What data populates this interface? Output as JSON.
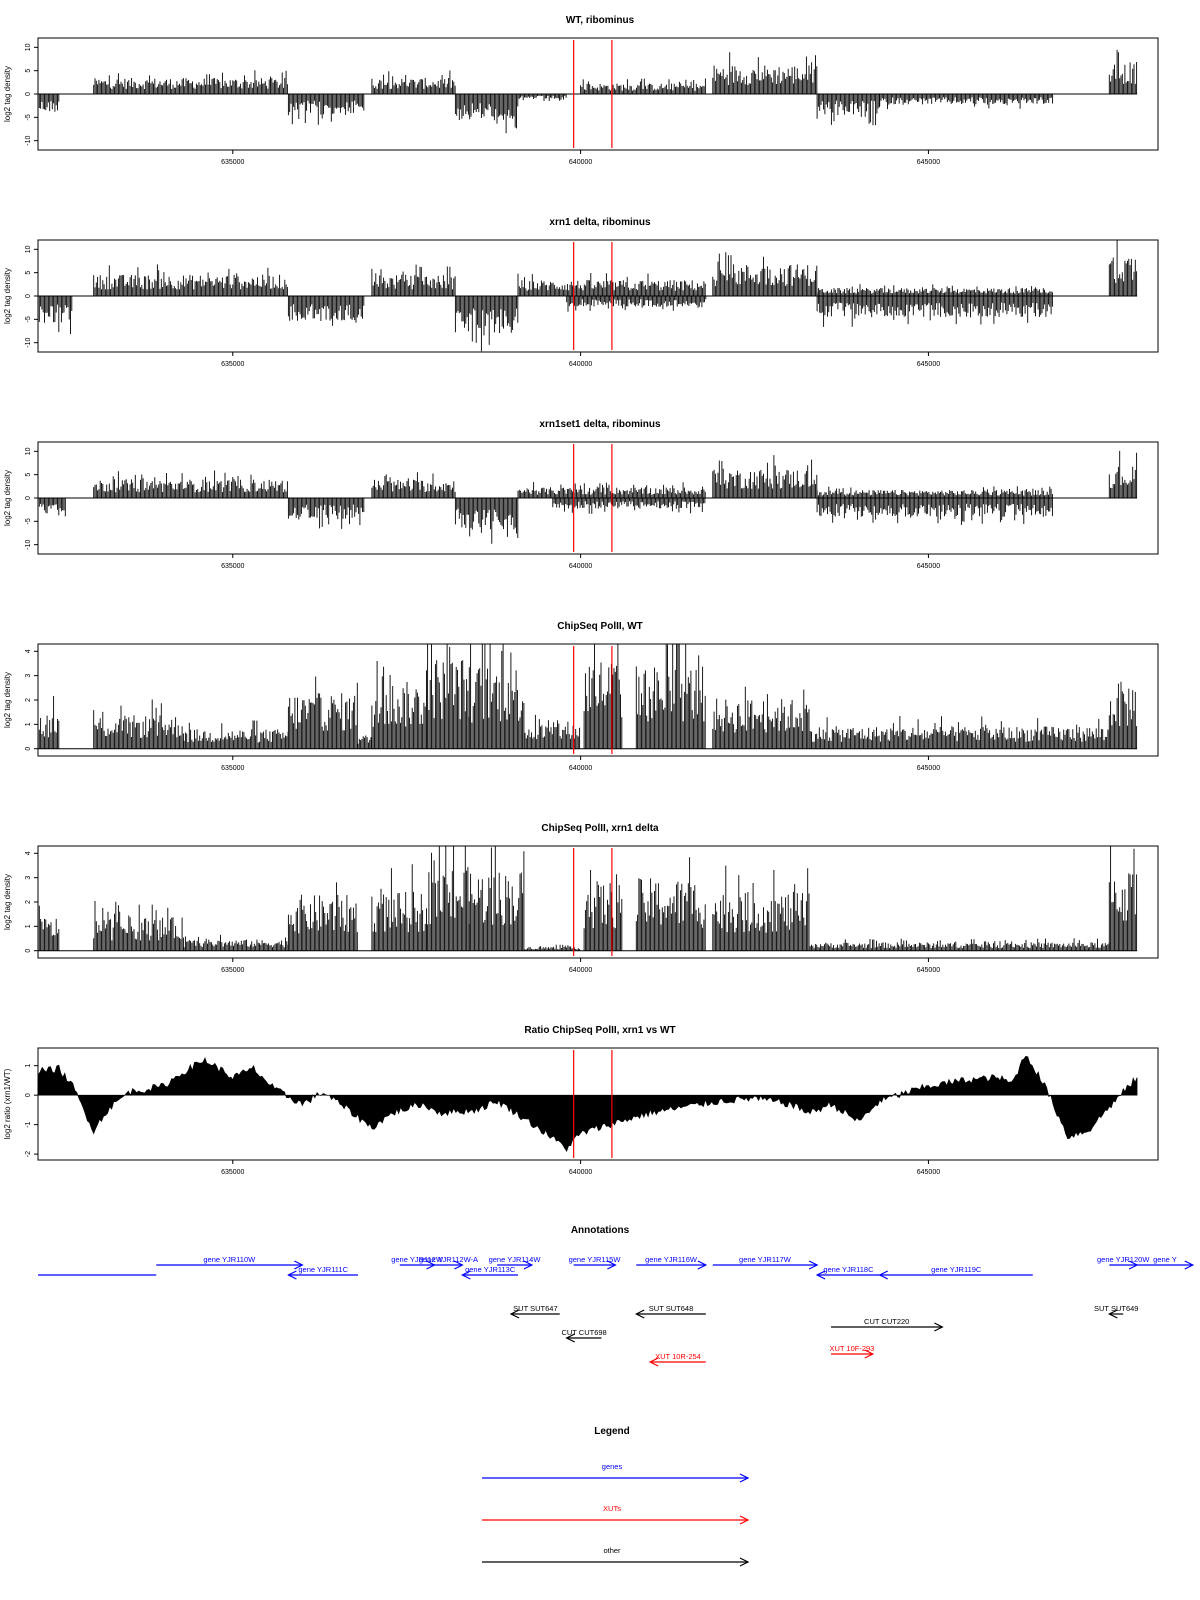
{
  "chart_data": [
    {
      "type": "bar",
      "title": "WT, ribominus",
      "ylabel": "log2 tag density",
      "xlim": [
        632200,
        648300
      ],
      "ylim": [
        -12,
        12
      ],
      "yticks": [
        "-10",
        "-5",
        "0",
        "5",
        "10"
      ],
      "xticks": [
        "635000",
        "640000",
        "645000"
      ],
      "markers": [
        639900,
        640450
      ],
      "segments": [
        {
          "from": 632200,
          "to": 632500,
          "sign": -1,
          "level": 3.5
        },
        {
          "from": 633000,
          "to": 635800,
          "sign": 1,
          "level": 3
        },
        {
          "from": 635800,
          "to": 636900,
          "sign": -1,
          "level": 4
        },
        {
          "from": 637000,
          "to": 638200,
          "sign": 1,
          "level": 3
        },
        {
          "from": 638200,
          "to": 639100,
          "sign": -1,
          "level": 5
        },
        {
          "from": 639100,
          "to": 639800,
          "sign": -1,
          "level": 1
        },
        {
          "from": 640000,
          "to": 641800,
          "sign": 1,
          "level": 2
        },
        {
          "from": 641900,
          "to": 643400,
          "sign": 1,
          "level": 5.5
        },
        {
          "from": 643400,
          "to": 644300,
          "sign": -1,
          "level": 4
        },
        {
          "from": 644300,
          "to": 646800,
          "sign": -1,
          "level": 2
        },
        {
          "from": 647600,
          "to": 648000,
          "sign": 1,
          "level": 6
        }
      ]
    },
    {
      "type": "bar",
      "title": "xrn1 delta, ribominus",
      "ylabel": "log2 tag density",
      "xlim": [
        632200,
        648300
      ],
      "ylim": [
        -12,
        12
      ],
      "yticks": [
        "-10",
        "-5",
        "0",
        "5",
        "10"
      ],
      "xticks": [
        "635000",
        "640000",
        "645000"
      ],
      "markers": [
        639900,
        640450
      ],
      "segments": [
        {
          "from": 632200,
          "to": 632700,
          "sign": -1,
          "level": 5
        },
        {
          "from": 633000,
          "to": 635800,
          "sign": 1,
          "level": 4
        },
        {
          "from": 635800,
          "to": 636900,
          "sign": -1,
          "level": 5
        },
        {
          "from": 637000,
          "to": 638200,
          "sign": 1,
          "level": 4
        },
        {
          "from": 638200,
          "to": 639100,
          "sign": -1,
          "level": 7
        },
        {
          "from": 639100,
          "to": 641800,
          "sign": 1,
          "level": 3
        },
        {
          "from": 639800,
          "to": 641800,
          "sign": -1,
          "level": 2
        },
        {
          "from": 641900,
          "to": 643400,
          "sign": 1,
          "level": 6
        },
        {
          "from": 643400,
          "to": 646800,
          "sign": -1,
          "level": 4
        },
        {
          "from": 643400,
          "to": 646800,
          "sign": 1,
          "level": 1.5
        },
        {
          "from": 647600,
          "to": 648000,
          "sign": 1,
          "level": 8
        }
      ]
    },
    {
      "type": "bar",
      "title": "xrn1set1 delta, ribominus",
      "ylabel": "log2 tag density",
      "xlim": [
        632200,
        648300
      ],
      "ylim": [
        -12,
        12
      ],
      "yticks": [
        "-10",
        "-5",
        "0",
        "5",
        "10"
      ],
      "xticks": [
        "635000",
        "640000",
        "645000"
      ],
      "markers": [
        639900,
        640450
      ],
      "segments": [
        {
          "from": 632200,
          "to": 632600,
          "sign": -1,
          "level": 3.5
        },
        {
          "from": 633000,
          "to": 635800,
          "sign": 1,
          "level": 3.5
        },
        {
          "from": 635800,
          "to": 636900,
          "sign": -1,
          "level": 4
        },
        {
          "from": 637000,
          "to": 638200,
          "sign": 1,
          "level": 3.5
        },
        {
          "from": 638200,
          "to": 639100,
          "sign": -1,
          "level": 6
        },
        {
          "from": 639100,
          "to": 641800,
          "sign": 1,
          "level": 2
        },
        {
          "from": 639600,
          "to": 641800,
          "sign": -1,
          "level": 2
        },
        {
          "from": 641900,
          "to": 643400,
          "sign": 1,
          "level": 5.5
        },
        {
          "from": 643400,
          "to": 646800,
          "sign": -1,
          "level": 3.5
        },
        {
          "from": 643400,
          "to": 646800,
          "sign": 1,
          "level": 1.5
        },
        {
          "from": 647600,
          "to": 648000,
          "sign": 1,
          "level": 6
        }
      ]
    },
    {
      "type": "bar",
      "title": "ChipSeq PolII, WT",
      "ylabel": "log2 tag density",
      "xlim": [
        632200,
        648300
      ],
      "ylim": [
        -0.3,
        4.3
      ],
      "yticks": [
        "0",
        "1",
        "2",
        "3",
        "4"
      ],
      "xticks": [
        "635000",
        "640000",
        "645000"
      ],
      "markers": [
        639900,
        640450
      ],
      "segments": [
        {
          "from": 632200,
          "to": 632500,
          "sign": 1,
          "level": 1.3
        },
        {
          "from": 633000,
          "to": 634300,
          "sign": 1,
          "level": 1.2
        },
        {
          "from": 634300,
          "to": 635800,
          "sign": 1,
          "level": 0.7
        },
        {
          "from": 635800,
          "to": 636800,
          "sign": 1,
          "level": 2
        },
        {
          "from": 636800,
          "to": 637000,
          "sign": 1,
          "level": 0.5
        },
        {
          "from": 637000,
          "to": 637800,
          "sign": 1,
          "level": 2.4
        },
        {
          "from": 637800,
          "to": 638400,
          "sign": 1,
          "level": 3.3
        },
        {
          "from": 638400,
          "to": 639200,
          "sign": 1,
          "level": 3
        },
        {
          "from": 639200,
          "to": 640000,
          "sign": 1,
          "level": 0.9
        },
        {
          "from": 640050,
          "to": 640600,
          "sign": 1,
          "level": 3.3
        },
        {
          "from": 640800,
          "to": 641800,
          "sign": 1,
          "level": 3
        },
        {
          "from": 641900,
          "to": 643300,
          "sign": 1,
          "level": 1.8
        },
        {
          "from": 643300,
          "to": 647600,
          "sign": 1,
          "level": 0.8
        },
        {
          "from": 647600,
          "to": 648000,
          "sign": 1,
          "level": 2.4
        }
      ]
    },
    {
      "type": "bar",
      "title": "ChipSeq PolII, xrn1 delta",
      "ylabel": "log2 tag density",
      "xlim": [
        632200,
        648300
      ],
      "ylim": [
        -0.3,
        4.3
      ],
      "yticks": [
        "0",
        "1",
        "2",
        "3",
        "4"
      ],
      "xticks": [
        "635000",
        "640000",
        "645000"
      ],
      "markers": [
        639900,
        640450
      ],
      "segments": [
        {
          "from": 632200,
          "to": 632500,
          "sign": 1,
          "level": 1.2
        },
        {
          "from": 633000,
          "to": 634300,
          "sign": 1,
          "level": 1.2
        },
        {
          "from": 634300,
          "to": 635800,
          "sign": 1,
          "level": 0.4
        },
        {
          "from": 635800,
          "to": 636800,
          "sign": 1,
          "level": 2
        },
        {
          "from": 637000,
          "to": 637800,
          "sign": 1,
          "level": 2.1
        },
        {
          "from": 637800,
          "to": 638400,
          "sign": 1,
          "level": 3
        },
        {
          "from": 638400,
          "to": 639200,
          "sign": 1,
          "level": 2.9
        },
        {
          "from": 639200,
          "to": 640000,
          "sign": 1,
          "level": 0.15
        },
        {
          "from": 640050,
          "to": 640600,
          "sign": 1,
          "level": 2.5
        },
        {
          "from": 640800,
          "to": 641800,
          "sign": 1,
          "level": 2.6
        },
        {
          "from": 641900,
          "to": 643300,
          "sign": 1,
          "level": 2.1
        },
        {
          "from": 643300,
          "to": 647600,
          "sign": 1,
          "level": 0.3
        },
        {
          "from": 647600,
          "to": 648000,
          "sign": 1,
          "level": 3
        }
      ]
    },
    {
      "type": "area",
      "title": "Ratio ChipSeq PolII, xrn1 vs WT",
      "ylabel": "log2 ratio (xrn1/WT)",
      "xlim": [
        632200,
        648300
      ],
      "ylim": [
        -2.2,
        1.6
      ],
      "yticks": [
        "-2",
        "-1",
        "0",
        "1"
      ],
      "xticks": [
        "635000",
        "640000",
        "645000"
      ],
      "markers": [
        639900,
        640450
      ],
      "x": [
        632200,
        632500,
        632700,
        633000,
        633200,
        633500,
        634000,
        634300,
        634600,
        635000,
        635300,
        635600,
        636000,
        636300,
        636600,
        637000,
        637300,
        637700,
        638000,
        638500,
        638800,
        639200,
        639500,
        639800,
        640000,
        640400,
        640700,
        641000,
        641500,
        642000,
        642500,
        643000,
        643300,
        643600,
        644000,
        644300,
        644700,
        645000,
        645500,
        646000,
        646200,
        646400,
        646700,
        647000,
        647300,
        647600,
        648000
      ],
      "y": [
        0.8,
        0.9,
        0.3,
        -1.2,
        -0.5,
        0.1,
        0.3,
        0.8,
        1.2,
        0.6,
        0.9,
        0.2,
        -0.3,
        0.1,
        -0.4,
        -1.1,
        -0.6,
        -0.3,
        -0.6,
        -0.5,
        -0.2,
        -0.8,
        -1.3,
        -1.8,
        -1.3,
        -1,
        -0.8,
        -0.6,
        -0.4,
        -0.2,
        -0.1,
        -0.3,
        -0.6,
        -0.3,
        -0.9,
        -0.2,
        0.1,
        0.3,
        0.5,
        0.6,
        0.4,
        1.4,
        0.2,
        -1.4,
        -1.2,
        -0.4,
        0.6
      ]
    }
  ],
  "annotations": {
    "title": "Annotations",
    "items": [
      {
        "label": "",
        "start": 632200,
        "end": 633900,
        "row": 1,
        "kind": "gene",
        "dir": "none"
      },
      {
        "label": "gene YJR110W",
        "start": 633900,
        "end": 636000,
        "row": 0,
        "kind": "gene",
        "dir": "right"
      },
      {
        "label": "gene YJR111C",
        "start": 635800,
        "end": 636800,
        "row": 1,
        "kind": "gene",
        "dir": "left"
      },
      {
        "label": "gene YJR112W",
        "start": 637400,
        "end": 637900,
        "row": 0,
        "kind": "gene",
        "dir": "right"
      },
      {
        "label": "gene YJR112W-A",
        "start": 637900,
        "end": 638300,
        "row": 0,
        "kind": "gene",
        "dir": "right"
      },
      {
        "label": "gene YJR113C",
        "start": 638300,
        "end": 639100,
        "row": 1,
        "kind": "gene",
        "dir": "left"
      },
      {
        "label": "gene YJR114W",
        "start": 638800,
        "end": 639300,
        "row": 0,
        "kind": "gene",
        "dir": "right"
      },
      {
        "label": "gene YJR115W",
        "start": 639900,
        "end": 640500,
        "row": 0,
        "kind": "gene",
        "dir": "right"
      },
      {
        "label": "gene YJR116W",
        "start": 640800,
        "end": 641800,
        "row": 0,
        "kind": "gene",
        "dir": "right"
      },
      {
        "label": "gene YJR117W",
        "start": 641900,
        "end": 643400,
        "row": 0,
        "kind": "gene",
        "dir": "right"
      },
      {
        "label": "gene YJR118C",
        "start": 643400,
        "end": 644300,
        "row": 1,
        "kind": "gene",
        "dir": "left"
      },
      {
        "label": "gene YJR119C",
        "start": 644300,
        "end": 646500,
        "row": 1,
        "kind": "gene",
        "dir": "left"
      },
      {
        "label": "gene YJR120W",
        "start": 647600,
        "end": 648000,
        "row": 0,
        "kind": "gene",
        "dir": "right"
      },
      {
        "label": "gene Y",
        "start": 648000,
        "end": 648800,
        "row": 0,
        "kind": "gene",
        "dir": "right"
      },
      {
        "label": "SUT SUT647",
        "start": 639000,
        "end": 639700,
        "row": 3,
        "kind": "other",
        "dir": "left"
      },
      {
        "label": "SUT SUT648",
        "start": 640800,
        "end": 641800,
        "row": 3,
        "kind": "other",
        "dir": "left"
      },
      {
        "label": "SUT SUT649",
        "start": 647600,
        "end": 647800,
        "row": 3,
        "kind": "other",
        "dir": "left"
      },
      {
        "label": "CUT CUT220",
        "start": 643600,
        "end": 645200,
        "row": 4,
        "kind": "other",
        "dir": "right"
      },
      {
        "label": "CUT CUT698",
        "start": 639800,
        "end": 640300,
        "row": 5,
        "kind": "other",
        "dir": "left"
      },
      {
        "label": "XUT 10F-293",
        "start": 643600,
        "end": 644200,
        "row": 6,
        "kind": "xut",
        "dir": "right"
      },
      {
        "label": "XUT 10R-254",
        "start": 641000,
        "end": 641800,
        "row": 7,
        "kind": "xut",
        "dir": "left"
      }
    ]
  },
  "legend": {
    "title": "Legend",
    "items": [
      {
        "label": "genes",
        "color": "#0000ff"
      },
      {
        "label": "XUTs",
        "color": "#ff0000"
      },
      {
        "label": "other",
        "color": "#000000"
      }
    ]
  },
  "colors": {
    "gene": "#0000ff",
    "xut": "#ff0000",
    "other": "#000000",
    "marker": "#ff0000",
    "bars": "#000000"
  }
}
